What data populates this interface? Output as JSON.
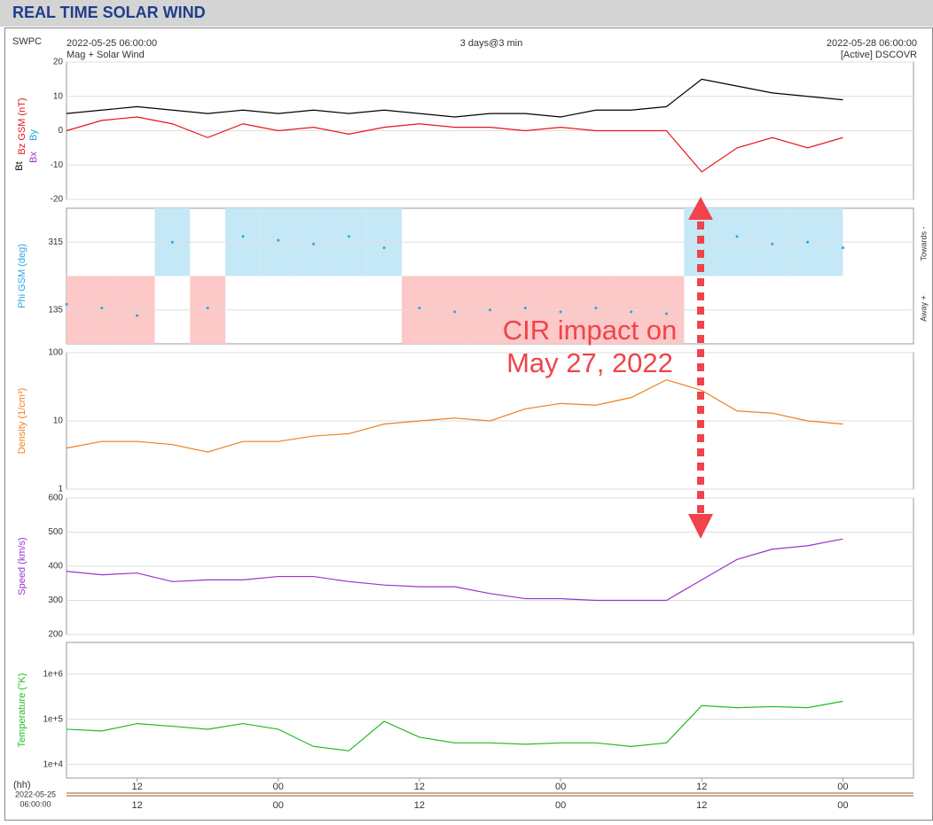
{
  "header": {
    "title": "REAL TIME SOLAR WIND",
    "source": "SWPC",
    "start": "2022-05-25 06:00:00",
    "subtitle": "Mag + Solar Wind",
    "span": "3 days@3 min",
    "end": "2022-05-28 06:00:00",
    "spacecraft": "[Active] DSCOVR",
    "x_unit": "(hh)",
    "x_start": [
      "2022-05-25",
      "06:00:00"
    ]
  },
  "annotation": [
    "CIR impact on",
    "May 27, 2022"
  ],
  "chart_data": [
    {
      "type": "line",
      "other_labels": [
        {
          "text": "Bx",
          "color": "#9b30c8"
        },
        {
          "text": "By",
          "color": "#16a9d8"
        }
      ],
      "x": [
        0,
        3,
        6,
        9,
        12,
        15,
        18,
        21,
        24,
        27,
        30,
        33,
        36,
        39,
        42,
        45,
        48,
        51,
        54,
        57,
        60,
        63,
        66
      ],
      "xlim": [
        0,
        72
      ],
      "ylim": [
        -20,
        20
      ],
      "yticks": [
        -20,
        -10,
        0,
        10,
        20
      ],
      "grid": true,
      "series": [
        {
          "name": "Bt",
          "color": "#000000",
          "values": [
            5,
            6,
            7,
            6,
            5,
            6,
            5,
            6,
            5,
            6,
            5,
            4,
            5,
            5,
            4,
            6,
            6,
            7,
            15,
            13,
            11,
            10,
            9
          ]
        },
        {
          "name": "Bz GSM (nT)",
          "color": "#e8141c",
          "values": [
            0,
            3,
            4,
            2,
            -2,
            2,
            0,
            1,
            -1,
            1,
            2,
            1,
            1,
            0,
            1,
            0,
            0,
            0,
            -12,
            -5,
            -2,
            -5,
            -2
          ]
        }
      ]
    },
    {
      "type": "scatter",
      "ylabel": "Phi GSM (deg)",
      "color": "#29a8e0",
      "side_labels": [
        "Towards -",
        "Away +"
      ],
      "x": [
        0,
        3,
        6,
        9,
        12,
        15,
        18,
        21,
        24,
        27,
        30,
        33,
        36,
        39,
        42,
        45,
        48,
        51,
        54,
        57,
        60,
        63,
        66
      ],
      "xlim": [
        0,
        72
      ],
      "values": [
        150,
        140,
        120,
        315,
        140,
        330,
        320,
        310,
        330,
        300,
        140,
        130,
        135,
        140,
        130,
        140,
        130,
        125,
        320,
        330,
        310,
        315,
        300
      ],
      "ylim": [
        45,
        405
      ],
      "yticks": [
        135,
        315
      ],
      "grid": true
    },
    {
      "type": "line",
      "ylabel": "Density (1/cm³)",
      "color": "#f07f1e",
      "log": true,
      "x": [
        0,
        3,
        6,
        9,
        12,
        15,
        18,
        21,
        24,
        27,
        30,
        33,
        36,
        39,
        42,
        45,
        48,
        51,
        54,
        57,
        60,
        63,
        66
      ],
      "xlim": [
        0,
        72
      ],
      "values": [
        4,
        5,
        5,
        4.5,
        3.5,
        5,
        5,
        6,
        6.5,
        9,
        10,
        11,
        10,
        15,
        18,
        17,
        22,
        40,
        28,
        14,
        13,
        10,
        9
      ],
      "ylim": [
        1,
        100
      ],
      "yticks": [
        1,
        10,
        100
      ],
      "grid": true
    },
    {
      "type": "line",
      "ylabel": "Speed (km/s)",
      "color": "#9933cc",
      "x": [
        0,
        3,
        6,
        9,
        12,
        15,
        18,
        21,
        24,
        27,
        30,
        33,
        36,
        39,
        42,
        45,
        48,
        51,
        54,
        57,
        60,
        63,
        66
      ],
      "xlim": [
        0,
        72
      ],
      "values": [
        385,
        375,
        380,
        355,
        360,
        360,
        370,
        370,
        355,
        345,
        340,
        340,
        320,
        305,
        305,
        300,
        300,
        300,
        360,
        420,
        450,
        460,
        480
      ],
      "ylim": [
        200,
        600
      ],
      "yticks": [
        200,
        300,
        400,
        500,
        600
      ],
      "grid": true
    },
    {
      "type": "line",
      "ylabel": "Temperature (°K)",
      "color": "#22bb22",
      "log": true,
      "x": [
        0,
        3,
        6,
        9,
        12,
        15,
        18,
        21,
        24,
        27,
        30,
        33,
        36,
        39,
        42,
        45,
        48,
        51,
        54,
        57,
        60,
        63,
        66
      ],
      "xlim": [
        0,
        72
      ],
      "values": [
        60000,
        55000,
        80000,
        70000,
        60000,
        80000,
        60000,
        25000,
        20000,
        90000,
        40000,
        30000,
        30000,
        28000,
        30000,
        30000,
        25000,
        30000,
        200000,
        180000,
        190000,
        180000,
        250000
      ],
      "ylim": [
        5000,
        5000000
      ],
      "yticks": [
        {
          "value": 10000,
          "label": "1e+4"
        },
        {
          "value": 100000,
          "label": "1e+5"
        },
        {
          "value": 1000000,
          "label": "1e+6"
        }
      ],
      "grid": true,
      "xticks": [
        {
          "value": 6,
          "label": "12"
        },
        {
          "value": 18,
          "label": "00"
        },
        {
          "value": 30,
          "label": "12"
        },
        {
          "value": 42,
          "label": "00"
        },
        {
          "value": 54,
          "label": "12"
        },
        {
          "value": 66,
          "label": "00"
        }
      ]
    }
  ]
}
